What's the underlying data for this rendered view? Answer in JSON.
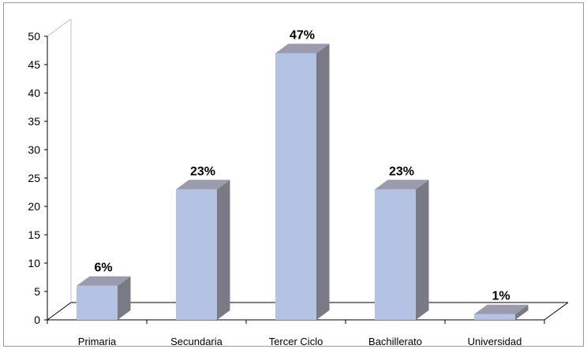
{
  "chart_data": {
    "type": "bar",
    "categories": [
      "Primaria",
      "Secundaria",
      "Tercer Ciclo",
      "Bachillerato",
      "Universidad"
    ],
    "values": [
      6,
      23,
      47,
      23,
      1
    ],
    "data_labels": [
      "6%",
      "23%",
      "47%",
      "23%",
      "1%"
    ],
    "title": "",
    "xlabel": "",
    "ylabel": "",
    "ylim": [
      0,
      50
    ],
    "yticks": [
      0,
      5,
      10,
      15,
      20,
      25,
      30,
      35,
      40,
      45,
      50
    ],
    "grid": false,
    "legend": "none",
    "style": "3d-column"
  },
  "colors": {
    "bar_front": "#b4c3e3",
    "bar_top": "#9a9cae",
    "bar_side": "#7a7a86",
    "axis": "#000000",
    "frame": "#9a9a9a",
    "wall": "#c0c0c0"
  }
}
